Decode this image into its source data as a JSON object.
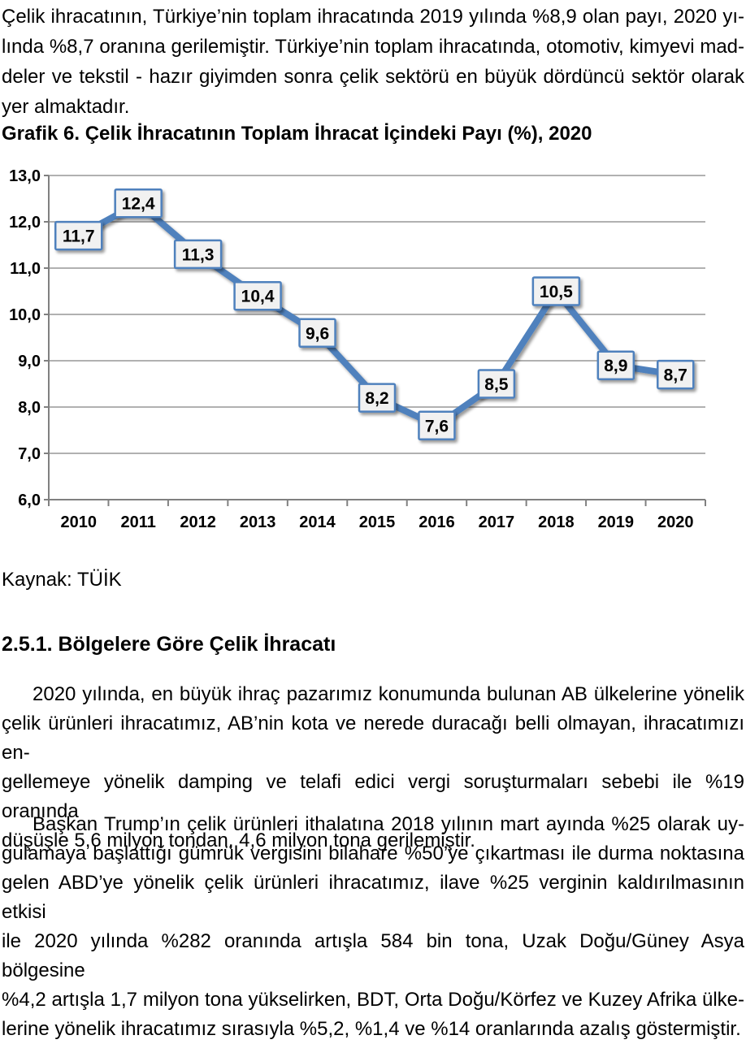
{
  "page": {
    "intro_paragraph": {
      "lines": [
        "Çelik ihracatının, Türkiye’nin toplam ihracatında 2019 yılında %8,9 olan payı, 2020 yı-",
        "lında %8,7 oranına gerilemiştir. Türkiye’nin toplam ihracatında, otomotiv, kimyevi mad-",
        "deler ve tekstil - hazır giyimden sonra çelik sektörü en büyük dördüncü sektör olarak",
        "yer almaktadır."
      ]
    },
    "chart_caption": "Grafik 6. Çelik İhracatının Toplam İhracat İçindeki Payı (%), 2020",
    "source_label": "Kaynak: TÜİK",
    "section_heading": "2.5.1. Bölgelere Göre Çelik İhracatı",
    "paragraph_1": {
      "lines": [
        "2020 yılında, en büyük ihraç pazarımız konumunda bulunan AB ülkelerine yönelik",
        "çelik ürünleri ihracatımız, AB’nin kota ve nerede duracağı belli olmayan, ihracatımızı en-",
        "gellemeye yönelik damping ve telafi edici vergi soruşturmaları sebebi ile %19 oranında",
        "düşüşle 5,6 milyon tondan, 4,6 milyon tona gerilemiştir."
      ]
    },
    "paragraph_2": {
      "lines": [
        "Başkan Trump’ın çelik ürünleri ithalatına 2018 yılının mart ayında %25 olarak uy-",
        "gulamaya başlattığı gümrük vergisini bilahare %50’ye çıkartması ile durma noktasına",
        "gelen ABD’ye yönelik çelik ürünleri ihracatımız, ilave %25 verginin kaldırılmasının etkisi",
        "ile 2020 yılında %282 oranında artışla 584 bin tona, Uzak Doğu/Güney Asya bölgesine",
        "%4,2 artışla 1,7 milyon tona yükselirken, BDT, Orta Doğu/Körfez ve Kuzey Afrika ülke-",
        "lerine yönelik ihracatımız sırasıyla %5,2, %1,4 ve %14 oranlarında azalış göstermiştir."
      ]
    }
  },
  "chart_data": {
    "type": "line",
    "title": "Çelik İhracatının Toplam İhracat İçindeki Payı (%), 2020",
    "categories": [
      "2010",
      "2011",
      "2012",
      "2013",
      "2014",
      "2015",
      "2016",
      "2017",
      "2018",
      "2019",
      "2020"
    ],
    "values": [
      11.7,
      12.4,
      11.3,
      10.4,
      9.6,
      8.2,
      7.6,
      8.5,
      10.5,
      8.9,
      8.7
    ],
    "point_labels": [
      "11,7",
      "12,4",
      "11,3",
      "10,4",
      "9,6",
      "8,2",
      "7,6",
      "8,5",
      "10,5",
      "8,9",
      "8,7"
    ],
    "xlabel": "",
    "ylabel": "",
    "ylim": [
      6.0,
      13.0
    ],
    "y_tick_values": [
      6,
      7,
      8,
      9,
      10,
      11,
      12,
      13
    ],
    "y_tick_labels": [
      "6,0",
      "7,0",
      "8,0",
      "9,0",
      "10,0",
      "11,0",
      "12,0",
      "13,0"
    ],
    "grid": "horizontal",
    "legend": "none",
    "colors": {
      "line": "#4F81BD",
      "label_box_fill": "#F1F1F1",
      "label_box_border": "#4F81BD",
      "gridline": "#A6A6A6",
      "axis": "#808080",
      "text": "#000000"
    }
  }
}
